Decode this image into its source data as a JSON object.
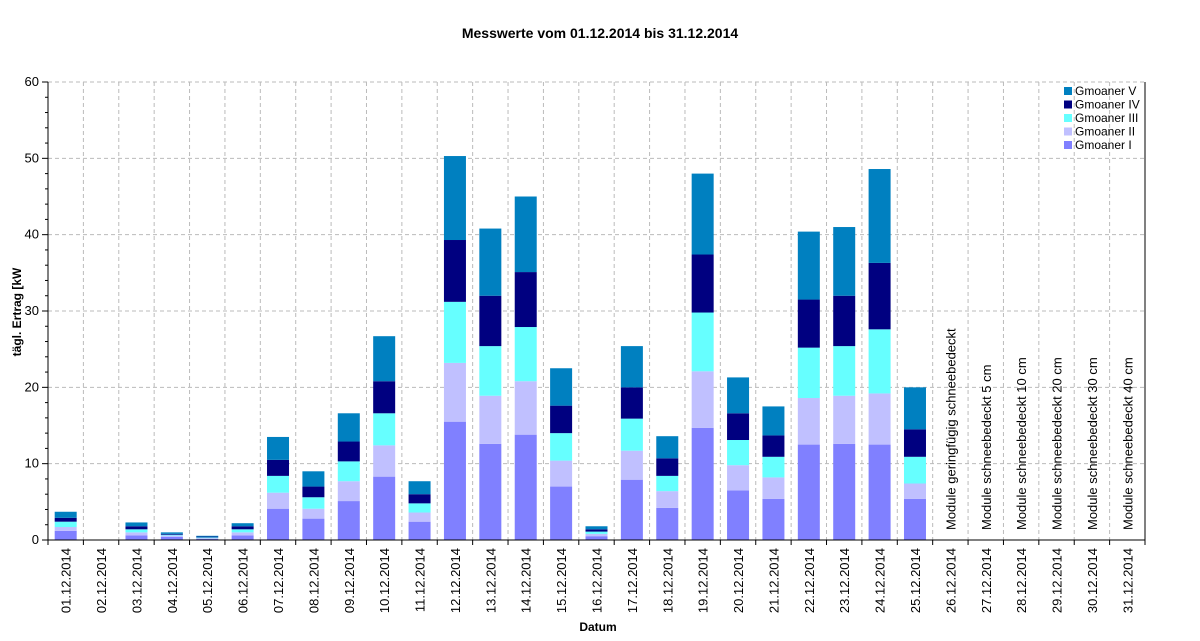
{
  "chart_data": {
    "type": "bar",
    "stacked": true,
    "title": "Messwerte vom 01.12.2014 bis 31.12.2014",
    "xlabel": "Datum",
    "ylabel": "tägl. Ertrag [kW",
    "ylim": [
      0,
      60
    ],
    "yticks": [
      0,
      10,
      20,
      30,
      40,
      50,
      60
    ],
    "grid": true,
    "legend_position": "top-right",
    "categories": [
      "01.12.2014",
      "02.12.2014",
      "03.12.2014",
      "04.12.2014",
      "05.12.2014",
      "06.12.2014",
      "07.12.2014",
      "08.12.2014",
      "09.12.2014",
      "10.12.2014",
      "11.12.2014",
      "12.12.2014",
      "13.12.2014",
      "14.12.2014",
      "15.12.2014",
      "16.12.2014",
      "17.12.2014",
      "18.12.2014",
      "19.12.2014",
      "20.12.2014",
      "21.12.2014",
      "22.12.2014",
      "23.12.2014",
      "24.12.2014",
      "25.12.2014",
      "26.12.2014",
      "27.12.2014",
      "28.12.2014",
      "29.12.2014",
      "30.12.2014",
      "31.12.2014"
    ],
    "series": [
      {
        "name": "Gmoaner I",
        "color": "#8080ff",
        "values": [
          1.2,
          0,
          0.6,
          0.4,
          0.15,
          0.6,
          4.1,
          2.8,
          5.1,
          8.3,
          2.4,
          15.5,
          12.6,
          13.8,
          7.0,
          0.5,
          7.9,
          4.2,
          14.7,
          6.5,
          5.4,
          12.5,
          12.6,
          12.5,
          5.4,
          0,
          0,
          0,
          0,
          0,
          0
        ]
      },
      {
        "name": "Gmoaner II",
        "color": "#c0c0ff",
        "values": [
          0.5,
          0,
          0.4,
          0.2,
          0.1,
          0.4,
          2.1,
          1.3,
          2.6,
          4.1,
          1.2,
          7.7,
          6.3,
          7.0,
          3.4,
          0.3,
          3.8,
          2.2,
          7.4,
          3.3,
          2.8,
          6.1,
          6.3,
          6.7,
          2.0,
          0,
          0,
          0,
          0,
          0,
          0
        ]
      },
      {
        "name": "Gmoaner III",
        "color": "#66ffff",
        "values": [
          0.7,
          0,
          0.4,
          0.1,
          0.1,
          0.4,
          2.2,
          1.5,
          2.6,
          4.2,
          1.2,
          8.0,
          6.5,
          7.1,
          3.6,
          0.3,
          4.2,
          2.0,
          7.7,
          3.3,
          2.7,
          6.6,
          6.5,
          8.4,
          3.5,
          0,
          0,
          0,
          0,
          0,
          0
        ]
      },
      {
        "name": "Gmoaner IV",
        "color": "#000080",
        "values": [
          0.5,
          0,
          0.4,
          0.1,
          0.1,
          0.4,
          2.1,
          1.4,
          2.6,
          4.2,
          1.2,
          8.1,
          6.6,
          7.2,
          3.6,
          0.3,
          4.1,
          2.3,
          7.6,
          3.5,
          2.8,
          6.3,
          6.6,
          8.7,
          3.6,
          0,
          0,
          0,
          0,
          0,
          0
        ]
      },
      {
        "name": "Gmoaner V",
        "color": "#0080c0",
        "values": [
          0.8,
          0,
          0.5,
          0.2,
          0.1,
          0.4,
          3.0,
          2.0,
          3.7,
          5.9,
          1.7,
          11.0,
          8.8,
          9.9,
          4.9,
          0.4,
          5.4,
          2.9,
          10.6,
          4.7,
          3.8,
          8.9,
          9.0,
          12.3,
          5.5,
          0,
          0,
          0,
          0,
          0,
          0
        ]
      }
    ],
    "annotations": [
      {
        "category": "26.12.2014",
        "text": "Module geringfügig schneebedeckt"
      },
      {
        "category": "27.12.2014",
        "text": "Module schneebedeckt 5 cm"
      },
      {
        "category": "28.12.2014",
        "text": "Module schneebedeckt 10 cm"
      },
      {
        "category": "29.12.2014",
        "text": "Module schneebedeckt 20 cm"
      },
      {
        "category": "30.12.2014",
        "text": "Module schneebedeckt 30 cm"
      },
      {
        "category": "31.12.2014",
        "text": "Module schneebedeckt 40 cm"
      }
    ]
  }
}
